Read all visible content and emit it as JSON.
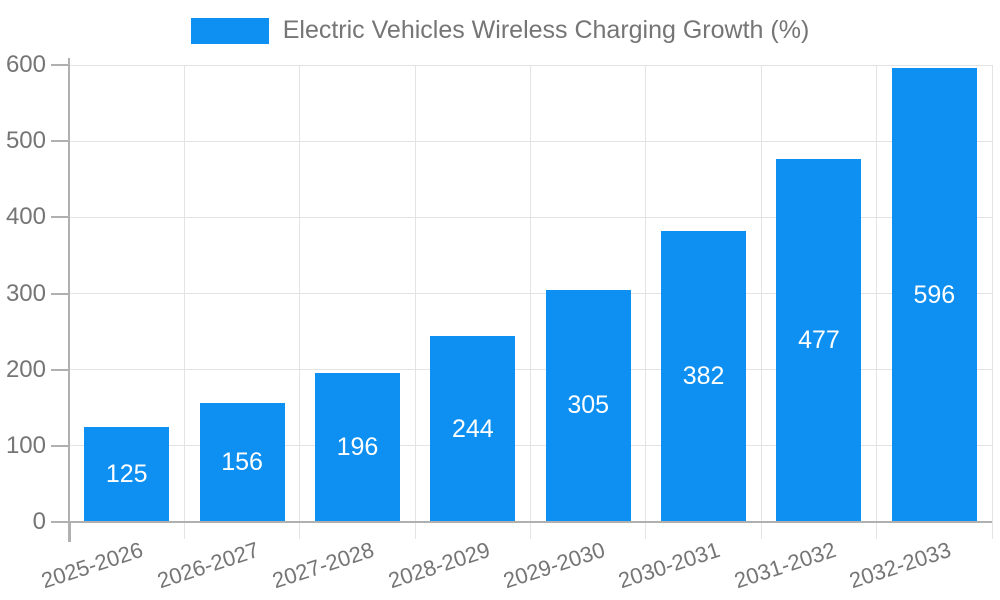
{
  "legend": {
    "label": "Electric Vehicles Wireless Charging Growth (%)"
  },
  "chart_data": {
    "type": "bar",
    "title": "",
    "xlabel": "",
    "ylabel": "",
    "categories": [
      "2025-2026",
      "2026-2027",
      "2027-2028",
      "2028-2029",
      "2029-2030",
      "2030-2031",
      "2031-2032",
      "2032-2033"
    ],
    "series": [
      {
        "name": "Electric Vehicles Wireless Charging Growth (%)",
        "values": [
          125,
          156,
          196,
          244,
          305,
          382,
          477,
          596
        ]
      }
    ],
    "value_labels_shown": true,
    "ylim": [
      0,
      600
    ],
    "yticks": [
      0,
      100,
      200,
      300,
      400,
      500,
      600
    ],
    "grid": true,
    "legend_position": "top-center",
    "colors": {
      "bar": "#0e8ff2",
      "value_label": "#ffffff",
      "grid_line": "#e3e3e3",
      "axis_line": "#b0b0b0",
      "tick_label": "#757575",
      "legend_text": "#757575",
      "background": "#ffffff"
    }
  }
}
